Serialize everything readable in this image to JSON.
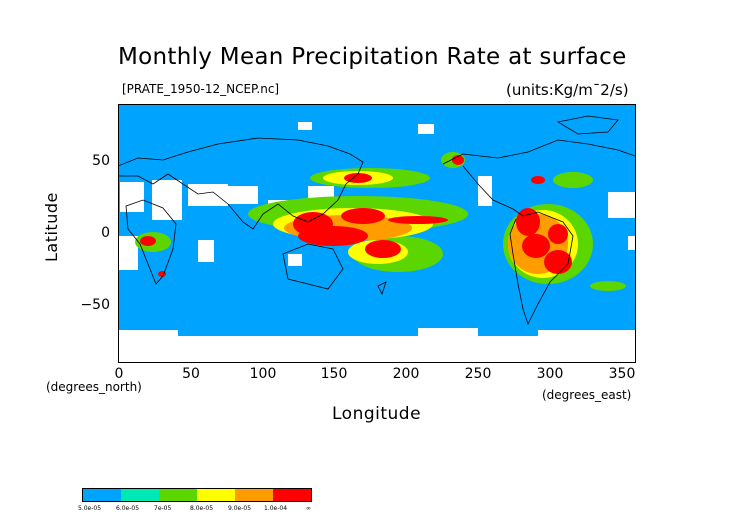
{
  "title": "Monthly Mean Precipitation Rate at surface",
  "file_label": "[PRATE_1950-12_NCEP.nc]",
  "units_label": "(units:Kg/m¯2/s)",
  "xaxis": {
    "label": "Longitude",
    "note": "(degrees_east)",
    "ticks": [
      "0",
      "50",
      "100",
      "150",
      "200",
      "250",
      "300",
      "350"
    ]
  },
  "yaxis": {
    "label": "Latitude",
    "note": "(degrees_north)",
    "ticks": [
      "50",
      "0",
      "−50"
    ]
  },
  "colorbar": {
    "colors": [
      "#00a4ff",
      "#00e8b4",
      "#5cd600",
      "#ffff00",
      "#ff9c00",
      "#ff0000"
    ],
    "labels": [
      "5.0e-05",
      "6.0e-05",
      "7e-05",
      "8.0e-05",
      "9.0e-05",
      "1.0e-04",
      "∞"
    ]
  },
  "chart_data": {
    "type": "heatmap",
    "title": "Monthly Mean Precipitation Rate at surface",
    "xlabel": "Longitude",
    "ylabel": "Latitude",
    "xlim": [
      0,
      360
    ],
    "ylim": [
      -90,
      90
    ],
    "x_ticks": [
      0,
      50,
      100,
      150,
      200,
      250,
      300,
      350
    ],
    "y_ticks": [
      -50,
      0,
      50
    ],
    "levels": [
      5e-05,
      6e-05,
      7e-05,
      8e-05,
      9e-05,
      0.0001
    ],
    "regions": [
      {
        "lon": [
          100,
          160
        ],
        "lat": [
          -10,
          15
        ],
        "level": 0.0001
      },
      {
        "lon": [
          160,
          180
        ],
        "lat": [
          -15,
          0
        ],
        "level": 0.0001
      },
      {
        "lon": [
          280,
          310
        ],
        "lat": [
          -30,
          5
        ],
        "level": 0.0001
      },
      {
        "lon": [
          145,
          240
        ],
        "lat": [
          35,
          55
        ],
        "level": 9e-05
      }
    ]
  }
}
